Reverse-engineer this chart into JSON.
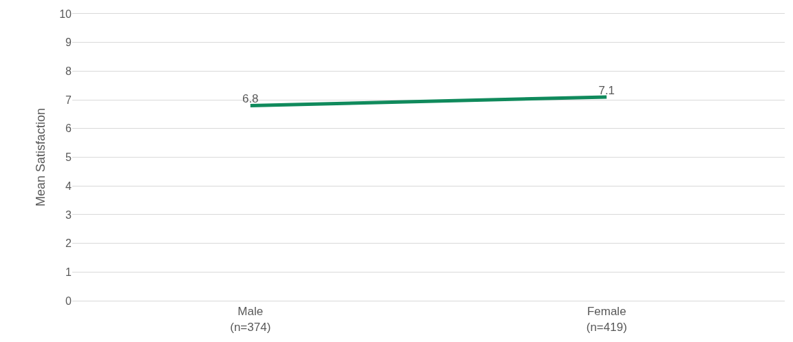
{
  "chart_data": {
    "type": "line",
    "ylabel": "Mean Satisfaction",
    "categories": [
      "Male\n(n=374)",
      "Female\n(n=419)"
    ],
    "series": [
      {
        "color": "#108a5c",
        "values": [
          6.8,
          7.1
        ]
      }
    ],
    "ylim": [
      0,
      10
    ],
    "yticks": [
      0,
      1,
      2,
      3,
      4,
      5,
      6,
      7,
      8,
      9,
      10
    ],
    "grid": "y",
    "marker": "none",
    "line_style": "solid",
    "data_labels": true
  }
}
